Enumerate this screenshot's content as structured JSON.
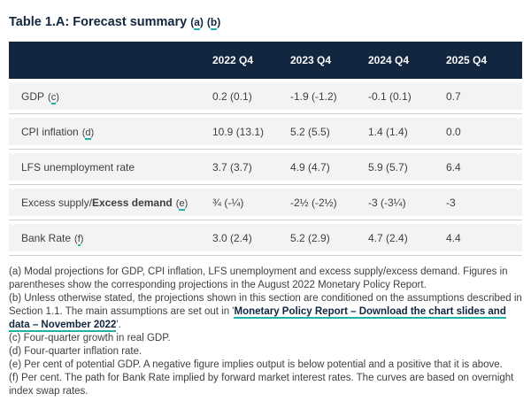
{
  "colors": {
    "navy": "#12273f",
    "teal": "#1fb2a6",
    "row_background": "#f3f3f4",
    "divider": "#cfcfcf",
    "body_text": "#3f3f3f",
    "header_text": "#fafafa"
  },
  "title": {
    "text": "Table 1.A: Forecast summary",
    "refs": [
      {
        "pre": "(",
        "letter": "a",
        "post": ")"
      },
      {
        "pre": "(",
        "letter": "b",
        "post": ")"
      }
    ]
  },
  "table": {
    "columns": [
      "2022 Q4",
      "2023 Q4",
      "2024 Q4",
      "2025 Q4"
    ],
    "rows": [
      {
        "label": "GDP",
        "ref": {
          "pre": "(",
          "letter": "c",
          "post": ")"
        },
        "values": [
          "0.2 (0.1)",
          "-1.9 (-1.2)",
          "-0.1 (0.1)",
          "0.7"
        ]
      },
      {
        "label": "CPI inflation",
        "ref": {
          "pre": "(",
          "letter": "d",
          "post": ")"
        },
        "values": [
          "10.9 (13.1)",
          "5.2 (5.5)",
          "1.4 (1.4)",
          "0.0"
        ]
      },
      {
        "label": "LFS unemployment rate",
        "values": [
          "3.7 (3.7)",
          "4.9 (4.7)",
          "5.9 (5.7)",
          "6.4"
        ]
      },
      {
        "label": "Excess supply/",
        "label_bold": "Excess demand",
        "ref": {
          "pre": "(",
          "letter": "e",
          "post": ")"
        },
        "values": [
          "¾ (-¼)",
          "-2½ (-2½)",
          "-3 (-3¼)",
          "-3"
        ]
      },
      {
        "label": "Bank Rate",
        "ref": {
          "pre": "(",
          "letter": "f",
          "post": ")"
        },
        "values": [
          "3.0 (2.4)",
          "5.2 (2.9)",
          "4.7 (2.4)",
          "4.4"
        ]
      }
    ]
  },
  "footnotes": [
    {
      "text": "(a) Modal projections for GDP, CPI inflation, LFS unemployment and excess supply/excess demand. Figures in parentheses show the corresponding projections in the August 2022 Monetary Policy Report."
    },
    {
      "text": "(b) Unless otherwise stated, the projections shown in this section are conditioned on the assumptions described in Section 1.1. The main assumptions are set out in '",
      "link": "Monetary Policy Report – Download the chart slides and data – November 2022",
      "after": "'."
    },
    {
      "text": "(c) Four-quarter growth in real GDP."
    },
    {
      "text": "(d) Four-quarter inflation rate."
    },
    {
      "text": "(e) Per cent of potential GDP. A negative figure implies output is below potential and a positive that it is above."
    },
    {
      "text": "(f) Per cent. The path for Bank Rate implied by forward market interest rates. The curves are based on overnight index swap rates."
    }
  ]
}
